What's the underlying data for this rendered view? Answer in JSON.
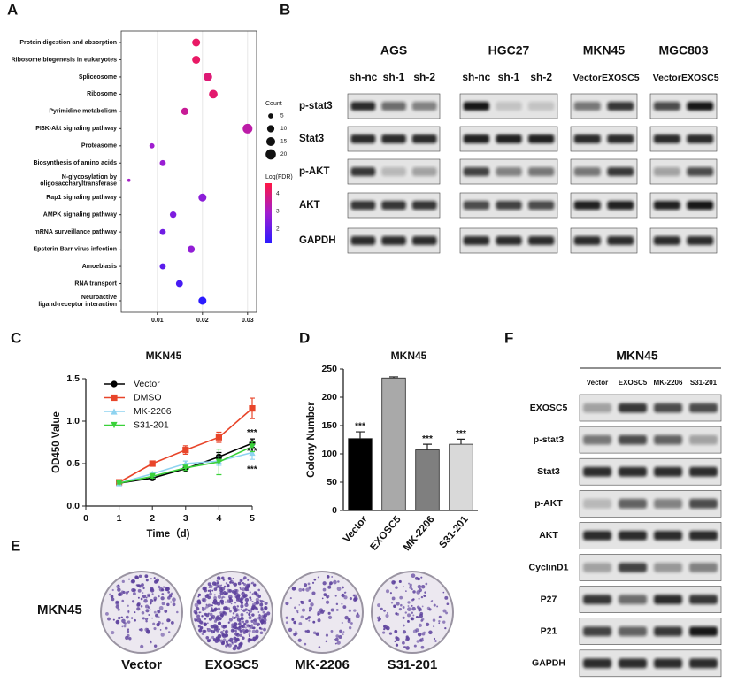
{
  "panel_labels": [
    "A",
    "B",
    "C",
    "D",
    "E",
    "F"
  ],
  "chart_data": [
    {
      "type": "dot",
      "categories": [
        "Protein digestion and  absorption",
        "Ribosome biogenesis in eukaryotes",
        "Spliceosome",
        "Ribosome",
        "Pyrimidine metabolism",
        "PI3K-Akt signaling pathway",
        "Proteasome",
        "Biosynthesis of amino acids",
        "N-glycosylation by\noligosaccharyltransferase",
        "Rap1 signaling pathway",
        "AMPK signaling  pathway",
        "mRNA surveillance pathway",
        "Epsterin-Barr virus infection",
        "Amoebiasis",
        "RNA transport",
        "Neuroactive\nligand-receptor interaction"
      ],
      "values": [
        0.0186,
        0.0186,
        0.0212,
        0.0224,
        0.0161,
        0.03,
        0.0088,
        0.0112,
        0.0037,
        0.02,
        0.0135,
        0.0112,
        0.0175,
        0.0112,
        0.0149,
        0.02
      ],
      "sizes": [
        12,
        12,
        14,
        14,
        10,
        18,
        5,
        7,
        2,
        12,
        8,
        7,
        10,
        7,
        9,
        12
      ],
      "color_values": [
        4.2,
        4.2,
        4.0,
        4.1,
        3.6,
        3.4,
        2.9,
        2.8,
        3.0,
        2.6,
        2.4,
        2.2,
        2.7,
        1.9,
        1.6,
        1.2
      ],
      "xlim": [
        0.002,
        0.032
      ],
      "xticks": [
        0.01,
        0.02,
        0.03
      ],
      "grid": true,
      "size_legend": {
        "title": "Count",
        "values": [
          5,
          10,
          15,
          20
        ]
      },
      "color_legend": {
        "title": "Log(FDR)",
        "lim": [
          1.2,
          4.6
        ],
        "ticks": [
          2,
          3,
          4
        ],
        "colors": [
          "#2b1bff",
          "#a01ed0",
          "#ff1744"
        ]
      }
    },
    {
      "type": "line",
      "title": "MKN45",
      "x_label": "Time（d)",
      "y_label": "OD450 Value",
      "x": [
        1,
        2,
        3,
        4,
        5
      ],
      "xlim": [
        0,
        5
      ],
      "xticks": [
        0,
        1,
        2,
        3,
        4,
        5
      ],
      "ylim": [
        0,
        1.5
      ],
      "yticks": [
        {
          "value": 0,
          "label": "0.0"
        },
        {
          "value": 0.5,
          "label": "0.5"
        },
        {
          "value": 1,
          "label": "1.0"
        },
        {
          "value": 1.5,
          "label": "1.5"
        }
      ],
      "series": [
        {
          "name": "Vector",
          "color": "#000000",
          "marker": "circle",
          "values": [
            0.27,
            0.33,
            0.44,
            0.58,
            0.74
          ],
          "errors": [
            0.01,
            0.02,
            0.02,
            0.05,
            0.05
          ]
        },
        {
          "name": "DMSO",
          "color": "#e8452a",
          "marker": "square",
          "values": [
            0.28,
            0.5,
            0.66,
            0.81,
            1.15
          ],
          "errors": [
            0.02,
            0.03,
            0.05,
            0.06,
            0.12
          ]
        },
        {
          "name": "MK-2206",
          "color": "#8fd3f0",
          "marker": "triangle-up",
          "values": [
            0.27,
            0.38,
            0.5,
            0.53,
            0.63
          ],
          "errors": [
            0.01,
            0.02,
            0.03,
            0.05,
            0.08
          ]
        },
        {
          "name": "S31-201",
          "color": "#3ad13a",
          "marker": "triangle-down",
          "values": [
            0.27,
            0.35,
            0.45,
            0.52,
            0.7
          ],
          "errors": [
            0.01,
            0.02,
            0.03,
            0.15,
            0.06
          ]
        }
      ],
      "annotations": [
        {
          "text": "***",
          "x": 5,
          "y": 0.86
        },
        {
          "text": "***",
          "x": 5,
          "y": 0.64
        },
        {
          "text": "***",
          "x": 5,
          "y": 0.43
        }
      ]
    },
    {
      "type": "bar",
      "title": "MKN45",
      "y_label": "Colony Number",
      "categories": [
        "Vector",
        "EXOSC5",
        "MK-2206",
        "S31-201"
      ],
      "values": [
        127,
        234,
        107,
        117
      ],
      "errors": [
        12,
        2,
        10,
        9
      ],
      "colors": [
        "#000000",
        "#a9a9a9",
        "#7f7f7f",
        "#d9d9d9"
      ],
      "annotations": [
        "***",
        null,
        "***",
        "***"
      ],
      "ylim": [
        0,
        250
      ],
      "yticks": [
        0,
        50,
        100,
        150,
        200,
        250
      ]
    }
  ],
  "panel_b": {
    "groups": [
      {
        "name": "AGS",
        "lanes": [
          "sh-nc",
          "sh-1",
          "sh-2"
        ]
      },
      {
        "name": "HGC27",
        "lanes": [
          "sh-nc",
          "sh-1",
          "sh-2"
        ]
      },
      {
        "name": "MKN45",
        "lanes": [
          "Vector",
          "EXOSC5"
        ]
      },
      {
        "name": "MGC803",
        "lanes": [
          "Vector",
          "EXOSC5"
        ]
      }
    ],
    "rows": [
      "p-stat3",
      "Stat3",
      "p-AKT",
      "AKT",
      "GAPDH"
    ]
  },
  "panel_e": {
    "cell_line": "MKN45",
    "labels": [
      "Vector",
      "EXOSC5",
      "MK-2206",
      "S31-201"
    ]
  },
  "panel_f": {
    "title": "MKN45",
    "lanes": [
      "Vector",
      "EXOSC5",
      "MK-2206",
      "S31-201"
    ],
    "rows": [
      "EXOSC5",
      "p-stat3",
      "Stat3",
      "p-AKT",
      "AKT",
      "CyclinD1",
      "P27",
      "P21",
      "GAPDH"
    ]
  }
}
